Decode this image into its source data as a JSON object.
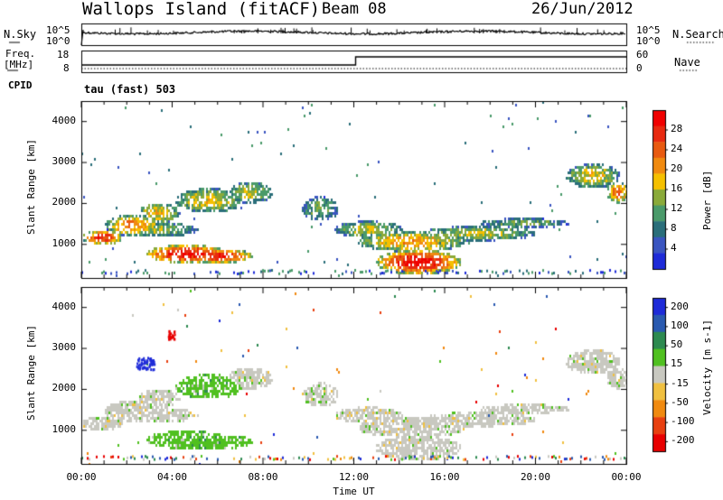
{
  "header": {
    "site": "Wallops Island (fitACF)",
    "beam": "Beam 08",
    "date": "26/Jun/2012"
  },
  "top_panels": {
    "nsky_label": "N.Sky",
    "nsearch_label": "N.Search",
    "nsky_ticks": [
      "10^5",
      "10^0"
    ],
    "nsearch_ticks": [
      "10^5",
      "10^0"
    ],
    "freq_label_1": "Freq.",
    "freq_label_2": "[MHz]",
    "freq_ticks": [
      "18",
      "8"
    ],
    "nave_label": "Nave",
    "nave_ticks": [
      "60",
      "0"
    ],
    "cpid_label": "CPID",
    "cpid_text": "tau (fast) 503"
  },
  "chart_data": [
    {
      "type": "heatmap",
      "name": "power",
      "xlabel": "",
      "ylabel": "Slant Range [km]",
      "colorbar_label": "Power [dB]",
      "y_ticks": [
        "4000",
        "3000",
        "2000",
        "1000"
      ],
      "y_tick_values": [
        4000,
        3000,
        2000,
        1000
      ],
      "ylim": [
        180,
        4500
      ],
      "xlim_hours": [
        0,
        24
      ],
      "colorbar_ticks": [
        "28",
        "24",
        "20",
        "16",
        "12",
        "8",
        "4"
      ],
      "colorbar_tick_values": [
        28,
        24,
        20,
        16,
        12,
        8,
        4
      ],
      "colorbar_range": [
        0,
        32
      ],
      "colors": [
        "#1e2bd8",
        "#3a55c0",
        "#2a6e7a",
        "#4a9a6a",
        "#8aaa3a",
        "#f5c000",
        "#f08a10",
        "#e85a10",
        "#e82a10",
        "#f00000"
      ]
    },
    {
      "type": "heatmap",
      "name": "velocity",
      "xlabel": "Time UT",
      "ylabel": "Slant Range [km]",
      "colorbar_label": "Velocity [m s-1]",
      "y_ticks": [
        "4000",
        "3000",
        "2000",
        "1000"
      ],
      "y_tick_values": [
        4000,
        3000,
        2000,
        1000
      ],
      "ylim": [
        180,
        4500
      ],
      "xlim_hours": [
        0,
        24
      ],
      "x_ticks": [
        "00:00",
        "04:00",
        "08:00",
        "12:00",
        "16:00",
        "20:00",
        "00:00"
      ],
      "x_tick_values": [
        0,
        4,
        8,
        12,
        16,
        20,
        24
      ],
      "colorbar_ticks": [
        "200",
        "100",
        "50",
        "15",
        "-15",
        "-50",
        "-100",
        "-200"
      ],
      "colors": [
        "#1e2bd8",
        "#2a5ab0",
        "#2d8a50",
        "#50c020",
        "#c8c8c0",
        "#f0c040",
        "#f08a10",
        "#e84010",
        "#e80000"
      ]
    }
  ]
}
